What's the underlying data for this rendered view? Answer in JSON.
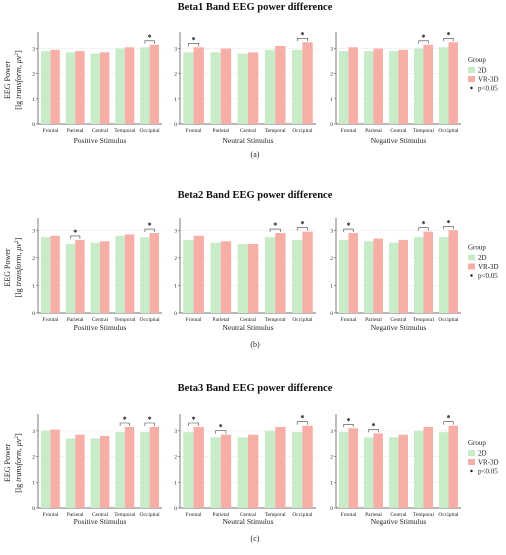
{
  "chart_data": [
    {
      "type": "bar",
      "title": "Beta1 Band EEG power difference",
      "panel_label": "(a)",
      "ylabel_line1": "EEG Power",
      "ylabel_line2_prefix": "[lg ",
      "ylabel_line2_italic": "transform, μv",
      "ylabel_line2_suffix": "]",
      "ylabel_sup": "2",
      "ylim": [
        0,
        3.5
      ],
      "yticks": [
        "0",
        "1",
        "2",
        "3"
      ],
      "categories": [
        "Frontal",
        "Parietal",
        "Central",
        "Temporal",
        "Occipital"
      ],
      "series_names": [
        "2D",
        "VR-3D"
      ],
      "colors": [
        "#c8ecc8",
        "#f7aea6"
      ],
      "legend": {
        "title": "Group",
        "sig_label": "p<0.05",
        "position": "right"
      },
      "subplots": [
        {
          "xlabel": "Positive Stimulus",
          "values_2d": [
            2.9,
            2.85,
            2.8,
            3.0,
            3.05
          ],
          "values_vr": [
            2.95,
            2.9,
            2.85,
            3.05,
            3.15
          ],
          "sig": [
            false,
            false,
            false,
            false,
            true
          ]
        },
        {
          "xlabel": "Neutral Stimulus",
          "values_2d": [
            2.85,
            2.85,
            2.8,
            2.95,
            2.95
          ],
          "values_vr": [
            3.05,
            3.0,
            2.85,
            3.1,
            3.25
          ],
          "sig": [
            true,
            false,
            false,
            false,
            true
          ]
        },
        {
          "xlabel": "Negative Stimulus",
          "values_2d": [
            2.9,
            2.9,
            2.9,
            3.0,
            3.05
          ],
          "values_vr": [
            3.05,
            3.0,
            2.95,
            3.15,
            3.25
          ],
          "sig": [
            false,
            false,
            false,
            true,
            true
          ]
        }
      ]
    },
    {
      "type": "bar",
      "title": "Beta2 Band EEG power difference",
      "panel_label": "(b)",
      "ylabel_line1": "EEG Power",
      "ylabel_line2_prefix": "[lg ",
      "ylabel_line2_italic": "transform, μv",
      "ylabel_line2_suffix": "]",
      "ylabel_sup": "2",
      "ylim": [
        0,
        3.3
      ],
      "yticks": [
        "0",
        "1",
        "2",
        "3"
      ],
      "categories": [
        "Frontal",
        "Parietal",
        "Central",
        "Temporal",
        "Occipital"
      ],
      "series_names": [
        "2D",
        "VR-3D"
      ],
      "colors": [
        "#c8ecc8",
        "#f7aea6"
      ],
      "legend": {
        "title": "Group",
        "sig_label": "p<0.05",
        "position": "right"
      },
      "subplots": [
        {
          "xlabel": "Positive Stimulus",
          "values_2d": [
            2.75,
            2.5,
            2.55,
            2.8,
            2.75
          ],
          "values_vr": [
            2.8,
            2.65,
            2.6,
            2.85,
            2.9
          ],
          "sig": [
            false,
            true,
            false,
            false,
            true
          ]
        },
        {
          "xlabel": "Neutral Stimulus",
          "values_2d": [
            2.65,
            2.55,
            2.5,
            2.75,
            2.65
          ],
          "values_vr": [
            2.8,
            2.6,
            2.5,
            2.9,
            2.95
          ],
          "sig": [
            false,
            false,
            false,
            true,
            true
          ]
        },
        {
          "xlabel": "Negative Stimulus",
          "values_2d": [
            2.65,
            2.6,
            2.55,
            2.75,
            2.75
          ],
          "values_vr": [
            2.9,
            2.7,
            2.65,
            2.95,
            3.0
          ],
          "sig": [
            true,
            false,
            false,
            true,
            true
          ]
        }
      ]
    },
    {
      "type": "bar",
      "title": "Beta3 Band EEG power difference",
      "panel_label": "(c)",
      "ylabel_line1": "EEG Power",
      "ylabel_line2_prefix": "[lg ",
      "ylabel_line2_italic": "transform, μv",
      "ylabel_line2_suffix": "]",
      "ylabel_sup": "2",
      "ylim": [
        0,
        3.5
      ],
      "yticks": [
        "0",
        "1",
        "2",
        "3"
      ],
      "categories": [
        "Frontal",
        "Parietal",
        "Central",
        "Temporal",
        "Occipital"
      ],
      "series_names": [
        "2D",
        "VR-3D"
      ],
      "colors": [
        "#c8ecc8",
        "#f7aea6"
      ],
      "legend": {
        "title": "Group",
        "sig_label": "p<0.05",
        "position": "right"
      },
      "subplots": [
        {
          "xlabel": "Positive Stimulus",
          "values_2d": [
            3.0,
            2.7,
            2.7,
            2.95,
            2.95
          ],
          "values_vr": [
            3.05,
            2.85,
            2.8,
            3.15,
            3.15
          ],
          "sig": [
            false,
            false,
            false,
            true,
            true
          ]
        },
        {
          "xlabel": "Neutral Stimulus",
          "values_2d": [
            2.95,
            2.75,
            2.75,
            3.0,
            2.95
          ],
          "values_vr": [
            3.15,
            2.85,
            2.85,
            3.15,
            3.2
          ],
          "sig": [
            true,
            true,
            false,
            false,
            true
          ]
        },
        {
          "xlabel": "Negative Stimulus",
          "values_2d": [
            2.95,
            2.75,
            2.75,
            3.0,
            2.95
          ],
          "values_vr": [
            3.1,
            2.9,
            2.85,
            3.15,
            3.2
          ],
          "sig": [
            true,
            true,
            false,
            false,
            true
          ]
        }
      ]
    }
  ]
}
